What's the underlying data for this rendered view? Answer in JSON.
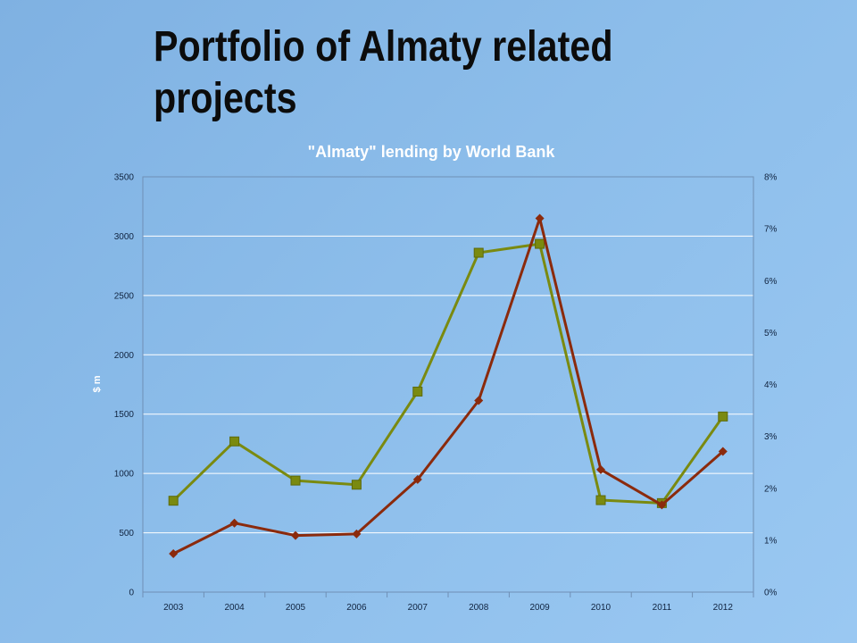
{
  "slide": {
    "title": "Portfolio of Almaty related projects"
  },
  "chart_data": {
    "type": "line",
    "title": "\"Almaty\" lending by World Bank",
    "xlabel": "",
    "ylabel": "$ m",
    "categories": [
      "2003",
      "2004",
      "2005",
      "2006",
      "2007",
      "2008",
      "2009",
      "2010",
      "2011",
      "2012"
    ],
    "ylim": [
      0,
      3500
    ],
    "yticks": [
      0,
      500,
      1000,
      1500,
      2000,
      2500,
      3000,
      3500
    ],
    "y2lim": [
      0,
      0.08
    ],
    "y2ticks": [
      "0%",
      "1%",
      "2%",
      "3%",
      "4%",
      "5%",
      "6%",
      "7%",
      "8%"
    ],
    "grid": true,
    "series": [
      {
        "axis": "left",
        "marker": "square",
        "color": "#7a8a10",
        "values": [
          770,
          1270,
          940,
          905,
          1690,
          2860,
          2935,
          775,
          750,
          1480
        ]
      },
      {
        "axis": "right",
        "marker": "diamond",
        "color": "#8b2a0c",
        "values": [
          0.0074,
          0.0133,
          0.0109,
          0.0112,
          0.0217,
          0.0369,
          0.072,
          0.0236,
          0.0168,
          0.0271
        ]
      }
    ]
  }
}
